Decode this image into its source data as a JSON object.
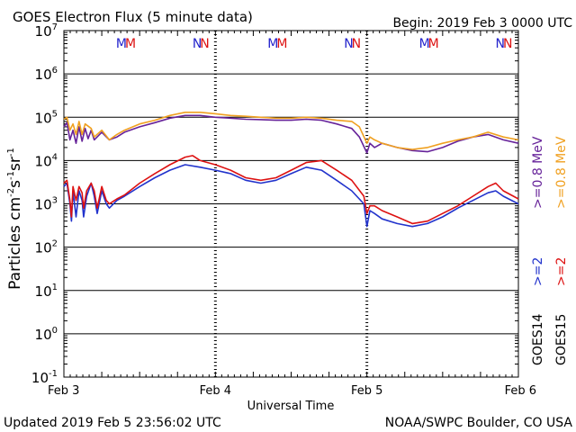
{
  "chart_data": {
    "type": "line",
    "title": "GOES Electron Flux (5 minute data)",
    "begin_label": "Begin: 2019 Feb 3 0000 UTC",
    "xlabel": "Universal Time",
    "ylabel": "Particles cm",
    "ylabel_parts": [
      "Particles cm",
      "-2",
      "s",
      "-1",
      "sr",
      "-1"
    ],
    "y_scale": "log",
    "ylim": [
      0.1,
      10000000
    ],
    "y_ticks": [
      {
        "mant": "10",
        "exp": "7"
      },
      {
        "mant": "10",
        "exp": "6"
      },
      {
        "mant": "10",
        "exp": "5"
      },
      {
        "mant": "10",
        "exp": "4"
      },
      {
        "mant": "10",
        "exp": "3"
      },
      {
        "mant": "10",
        "exp": "2"
      },
      {
        "mant": "10",
        "exp": "1"
      },
      {
        "mant": "10",
        "exp": "0"
      },
      {
        "mant": "10",
        "exp": "-1"
      }
    ],
    "x_unit": "day",
    "xlim": [
      0,
      3
    ],
    "x_ticks": [
      {
        "t": 0,
        "label": "Feb 3"
      },
      {
        "t": 1,
        "label": "Feb 4"
      },
      {
        "t": 2,
        "label": "Feb 5"
      },
      {
        "t": 3,
        "label": "Feb 6"
      }
    ],
    "threshold": {
      "value": 1000,
      "style": "dashed"
    },
    "mn_markers": [
      {
        "t": 0.38,
        "label": "M",
        "color": "#2222cc"
      },
      {
        "t": 0.44,
        "label": "M",
        "color": "#dd1111"
      },
      {
        "t": 0.88,
        "label": "N",
        "color": "#2222cc"
      },
      {
        "t": 0.93,
        "label": "N",
        "color": "#dd1111"
      },
      {
        "t": 1.38,
        "label": "M",
        "color": "#2222cc"
      },
      {
        "t": 1.44,
        "label": "M",
        "color": "#dd1111"
      },
      {
        "t": 1.88,
        "label": "N",
        "color": "#2222cc"
      },
      {
        "t": 1.93,
        "label": "N",
        "color": "#dd1111"
      },
      {
        "t": 2.38,
        "label": "M",
        "color": "#2222cc"
      },
      {
        "t": 2.44,
        "label": "M",
        "color": "#dd1111"
      },
      {
        "t": 2.88,
        "label": "N",
        "color": "#2222cc"
      },
      {
        "t": 2.93,
        "label": "N",
        "color": "#dd1111"
      }
    ],
    "legend": {
      "position": "right",
      "goes14": "GOES14",
      "goes15": "GOES15",
      "entries": [
        {
          "name": "GOES14 >=0.8 MeV",
          "label": ">=0.8 MeV",
          "color": "#662299"
        },
        {
          "name": "GOES15 >=0.8 MeV",
          "label": ">=0.8 MeV",
          "color": "#f0a020"
        },
        {
          "name": "GOES14 >=2",
          "label": ">=2",
          "color": "#2233cc"
        },
        {
          "name": "GOES15 >=2",
          "label": ">=2",
          "color": "#dd1111"
        }
      ]
    },
    "series": [
      {
        "key": "goes14_08",
        "color": "#662299",
        "points": [
          [
            0,
            60000
          ],
          [
            0.02,
            75000
          ],
          [
            0.04,
            30000
          ],
          [
            0.06,
            50000
          ],
          [
            0.08,
            25000
          ],
          [
            0.1,
            60000
          ],
          [
            0.12,
            28000
          ],
          [
            0.14,
            55000
          ],
          [
            0.16,
            32000
          ],
          [
            0.18,
            50000
          ],
          [
            0.2,
            30000
          ],
          [
            0.25,
            45000
          ],
          [
            0.3,
            30000
          ],
          [
            0.35,
            35000
          ],
          [
            0.4,
            45000
          ],
          [
            0.5,
            60000
          ],
          [
            0.6,
            75000
          ],
          [
            0.7,
            95000
          ],
          [
            0.8,
            110000
          ],
          [
            0.9,
            110000
          ],
          [
            1.0,
            100000
          ],
          [
            1.1,
            95000
          ],
          [
            1.2,
            90000
          ],
          [
            1.3,
            88000
          ],
          [
            1.4,
            85000
          ],
          [
            1.5,
            85000
          ],
          [
            1.6,
            90000
          ],
          [
            1.7,
            85000
          ],
          [
            1.8,
            70000
          ],
          [
            1.9,
            55000
          ],
          [
            1.95,
            35000
          ],
          [
            2.0,
            15000
          ],
          [
            2.02,
            25000
          ],
          [
            2.05,
            20000
          ],
          [
            2.1,
            25000
          ],
          [
            2.2,
            20000
          ],
          [
            2.3,
            17000
          ],
          [
            2.4,
            16000
          ],
          [
            2.5,
            20000
          ],
          [
            2.6,
            28000
          ],
          [
            2.7,
            35000
          ],
          [
            2.8,
            40000
          ],
          [
            2.9,
            30000
          ],
          [
            3.0,
            25000
          ]
        ]
      },
      {
        "key": "goes15_08",
        "color": "#f0a020",
        "points": [
          [
            0,
            90000
          ],
          [
            0.02,
            100000
          ],
          [
            0.04,
            50000
          ],
          [
            0.06,
            70000
          ],
          [
            0.08,
            40000
          ],
          [
            0.1,
            80000
          ],
          [
            0.12,
            40000
          ],
          [
            0.14,
            70000
          ],
          [
            0.18,
            55000
          ],
          [
            0.2,
            35000
          ],
          [
            0.25,
            50000
          ],
          [
            0.3,
            30000
          ],
          [
            0.35,
            40000
          ],
          [
            0.4,
            50000
          ],
          [
            0.5,
            70000
          ],
          [
            0.6,
            85000
          ],
          [
            0.7,
            110000
          ],
          [
            0.8,
            130000
          ],
          [
            0.9,
            130000
          ],
          [
            1.0,
            120000
          ],
          [
            1.1,
            110000
          ],
          [
            1.2,
            105000
          ],
          [
            1.3,
            100000
          ],
          [
            1.4,
            95000
          ],
          [
            1.5,
            95000
          ],
          [
            1.6,
            100000
          ],
          [
            1.7,
            95000
          ],
          [
            1.8,
            85000
          ],
          [
            1.9,
            80000
          ],
          [
            1.95,
            60000
          ],
          [
            2.0,
            25000
          ],
          [
            2.02,
            35000
          ],
          [
            2.05,
            30000
          ],
          [
            2.1,
            25000
          ],
          [
            2.2,
            20000
          ],
          [
            2.3,
            18000
          ],
          [
            2.4,
            20000
          ],
          [
            2.5,
            25000
          ],
          [
            2.6,
            30000
          ],
          [
            2.7,
            35000
          ],
          [
            2.8,
            45000
          ],
          [
            2.9,
            35000
          ],
          [
            3.0,
            30000
          ]
        ]
      },
      {
        "key": "goes14_2",
        "color": "#2233cc",
        "points": [
          [
            0,
            2500
          ],
          [
            0.02,
            3000
          ],
          [
            0.04,
            1000
          ],
          [
            0.05,
            400
          ],
          [
            0.06,
            2000
          ],
          [
            0.08,
            500
          ],
          [
            0.1,
            2000
          ],
          [
            0.12,
            1200
          ],
          [
            0.13,
            500
          ],
          [
            0.15,
            1500
          ],
          [
            0.18,
            3000
          ],
          [
            0.2,
            1500
          ],
          [
            0.22,
            600
          ],
          [
            0.25,
            2000
          ],
          [
            0.28,
            1000
          ],
          [
            0.3,
            800
          ],
          [
            0.35,
            1200
          ],
          [
            0.4,
            1500
          ],
          [
            0.5,
            2500
          ],
          [
            0.6,
            4000
          ],
          [
            0.7,
            6000
          ],
          [
            0.8,
            8000
          ],
          [
            0.9,
            7000
          ],
          [
            1.0,
            6000
          ],
          [
            1.1,
            5000
          ],
          [
            1.2,
            3500
          ],
          [
            1.3,
            3000
          ],
          [
            1.4,
            3500
          ],
          [
            1.5,
            5000
          ],
          [
            1.6,
            7000
          ],
          [
            1.7,
            6000
          ],
          [
            1.8,
            3500
          ],
          [
            1.9,
            2000
          ],
          [
            1.98,
            1000
          ],
          [
            2.0,
            300
          ],
          [
            2.02,
            700
          ],
          [
            2.05,
            600
          ],
          [
            2.1,
            450
          ],
          [
            2.2,
            350
          ],
          [
            2.3,
            300
          ],
          [
            2.4,
            350
          ],
          [
            2.5,
            500
          ],
          [
            2.6,
            800
          ],
          [
            2.7,
            1200
          ],
          [
            2.8,
            1800
          ],
          [
            2.85,
            2000
          ],
          [
            2.9,
            1500
          ],
          [
            3.0,
            1000
          ]
        ]
      },
      {
        "key": "goes15_2",
        "color": "#dd1111",
        "points": [
          [
            0,
            3000
          ],
          [
            0.02,
            3500
          ],
          [
            0.04,
            1200
          ],
          [
            0.05,
            500
          ],
          [
            0.06,
            2500
          ],
          [
            0.08,
            1200
          ],
          [
            0.1,
            2500
          ],
          [
            0.12,
            1800
          ],
          [
            0.13,
            800
          ],
          [
            0.15,
            2000
          ],
          [
            0.18,
            3000
          ],
          [
            0.2,
            2000
          ],
          [
            0.22,
            800
          ],
          [
            0.25,
            2500
          ],
          [
            0.28,
            1200
          ],
          [
            0.3,
            1000
          ],
          [
            0.35,
            1300
          ],
          [
            0.4,
            1600
          ],
          [
            0.5,
            3000
          ],
          [
            0.6,
            5000
          ],
          [
            0.7,
            8000
          ],
          [
            0.8,
            12000
          ],
          [
            0.85,
            13000
          ],
          [
            0.9,
            10000
          ],
          [
            1.0,
            8000
          ],
          [
            1.1,
            6000
          ],
          [
            1.2,
            4000
          ],
          [
            1.3,
            3500
          ],
          [
            1.4,
            4000
          ],
          [
            1.5,
            6000
          ],
          [
            1.6,
            9000
          ],
          [
            1.7,
            10000
          ],
          [
            1.8,
            6000
          ],
          [
            1.9,
            3500
          ],
          [
            1.98,
            1500
          ],
          [
            2.0,
            600
          ],
          [
            2.02,
            900
          ],
          [
            2.05,
            900
          ],
          [
            2.1,
            700
          ],
          [
            2.2,
            500
          ],
          [
            2.3,
            350
          ],
          [
            2.4,
            400
          ],
          [
            2.5,
            600
          ],
          [
            2.6,
            900
          ],
          [
            2.7,
            1500
          ],
          [
            2.8,
            2500
          ],
          [
            2.85,
            3000
          ],
          [
            2.9,
            2000
          ],
          [
            3.0,
            1300
          ]
        ]
      }
    ]
  },
  "footer": {
    "updated": "Updated 2019 Feb  5 23:56:02 UTC",
    "source": "NOAA/SWPC Boulder, CO USA"
  }
}
